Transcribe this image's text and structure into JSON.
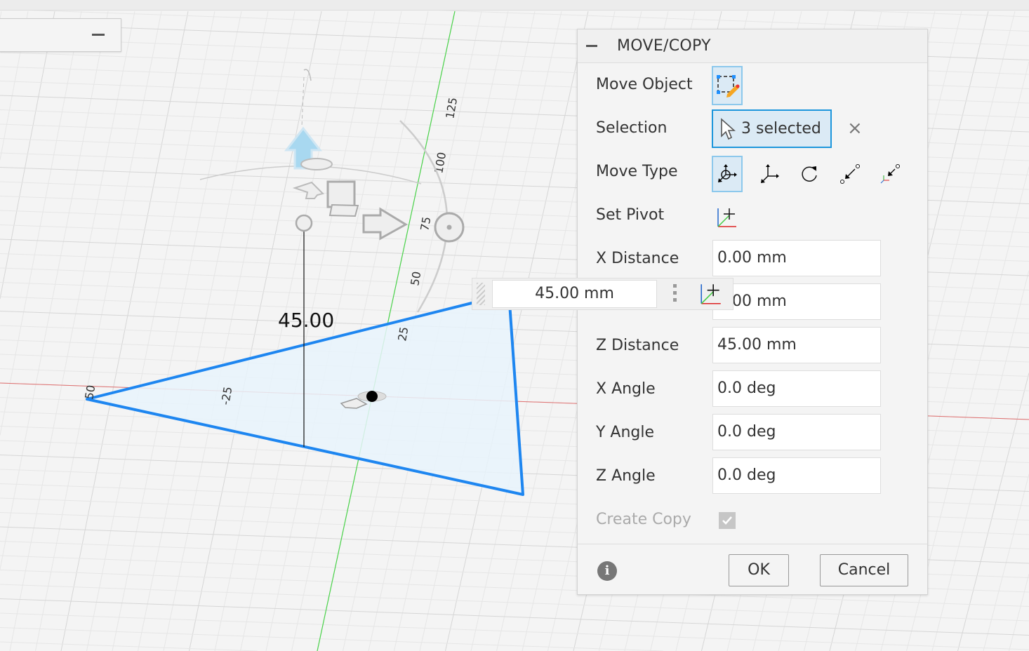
{
  "dialog": {
    "title": "MOVE/COPY",
    "move_object_label": "Move Object",
    "selection_label": "Selection",
    "selection_value": "3 selected",
    "move_type_label": "Move Type",
    "move_types": [
      "free-move-icon",
      "translate-icon",
      "rotate-icon",
      "point-to-point-icon",
      "point-to-position-icon"
    ],
    "active_move_type": "free-move-icon",
    "set_pivot_label": "Set Pivot",
    "x_distance_label": "X Distance",
    "x_distance_value": "0.00 mm",
    "y_distance_value": "0.00 mm",
    "z_distance_label": "Z Distance",
    "z_distance_value": "45.00 mm",
    "x_angle_label": "X Angle",
    "x_angle_value": "0.0 deg",
    "y_angle_label": "Y Angle",
    "y_angle_value": "0.0 deg",
    "z_angle_label": "Z Angle",
    "z_angle_value": "0.0 deg",
    "create_copy_label": "Create Copy",
    "create_copy_checked": true,
    "ok_label": "OK",
    "cancel_label": "Cancel"
  },
  "floating_input": {
    "value": "45.00 mm"
  },
  "viewport": {
    "dimension_label": "45.00",
    "axis_ticks": [
      "125",
      "100",
      "75",
      "50",
      "25",
      "-25",
      "50"
    ],
    "colors": {
      "selection": "#1e86f0",
      "fill": "#e8f3fc",
      "y_axis": "#4ad34a",
      "x_axis": "#e07070",
      "accent": "#1d96dc"
    }
  }
}
